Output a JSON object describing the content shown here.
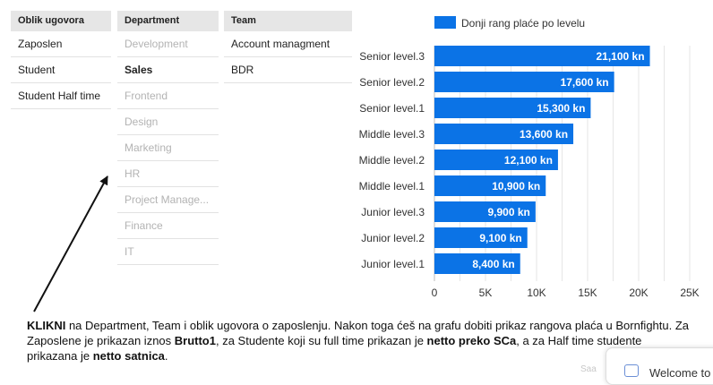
{
  "filters": {
    "oblik": {
      "header": "Oblik ugovora",
      "items": [
        {
          "label": "Zaposlen",
          "state": "normal"
        },
        {
          "label": "Student",
          "state": "normal"
        },
        {
          "label": "Student Half time",
          "state": "normal"
        }
      ]
    },
    "department": {
      "header": "Department",
      "items": [
        {
          "label": "Development",
          "state": "dim"
        },
        {
          "label": "Sales",
          "state": "selected"
        },
        {
          "label": "Frontend",
          "state": "dim"
        },
        {
          "label": "Design",
          "state": "dim"
        },
        {
          "label": "Marketing",
          "state": "dim"
        },
        {
          "label": "HR",
          "state": "dim"
        },
        {
          "label": "Project Manage...",
          "state": "dim"
        },
        {
          "label": "Finance",
          "state": "dim"
        },
        {
          "label": "IT",
          "state": "dim"
        }
      ]
    },
    "team": {
      "header": "Team",
      "items": [
        {
          "label": "Account managment",
          "state": "normal"
        },
        {
          "label": "BDR",
          "state": "normal"
        }
      ]
    }
  },
  "chart_data": {
    "type": "bar",
    "orientation": "horizontal",
    "legend": "Donji rang plaće po levelu",
    "categories": [
      "Senior level.3",
      "Senior level.2",
      "Senior level.1",
      "Middle level.3",
      "Middle level.2",
      "Middle level.1",
      "Junior level.3",
      "Junior level.2",
      "Junior level.1"
    ],
    "values": [
      21100,
      17600,
      15300,
      13600,
      12100,
      10900,
      9900,
      9100,
      8400
    ],
    "value_labels": [
      "21,100 kn",
      "17,600 kn",
      "15,300 kn",
      "13,600 kn",
      "12,100 kn",
      "10,900 kn",
      "9,900 kn",
      "9,100 kn",
      "8,400 kn"
    ],
    "xticks": [
      "0",
      "5K",
      "10K",
      "15K",
      "20K",
      "25K"
    ],
    "xlim": [
      0,
      25000
    ],
    "grid": true,
    "bar_color": "#0b73e6"
  },
  "instruction": {
    "segments": [
      {
        "text": "KLIKNI",
        "bold": true
      },
      {
        "text": " na Department, Team i oblik ugovora o zaposlenju. Nakon toga ćeš na grafu dobiti prikaz rangova plaća u Bornfightu. Za Zaposlene je prikazan iznos ",
        "bold": false
      },
      {
        "text": "Brutto1",
        "bold": true
      },
      {
        "text": ", za Studente koji su full time prikazan je ",
        "bold": false
      },
      {
        "text": "netto preko SCa",
        "bold": true
      },
      {
        "text": ", a za Half time studente prikazana je ",
        "bold": false
      },
      {
        "text": "netto satnica",
        "bold": true
      },
      {
        "text": ".",
        "bold": false
      }
    ]
  },
  "welcome": {
    "text": "Welcome to"
  },
  "faint_text": "Saa"
}
